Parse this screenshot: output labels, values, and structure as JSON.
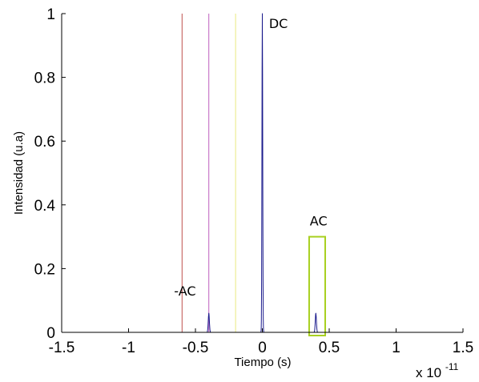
{
  "chart_data": {
    "type": "line",
    "title": "",
    "xlabel": "Tiempo (s)",
    "ylabel": "Intensidad (u.a)",
    "x_exponent_label": "x 10",
    "x_exponent_power": "-11",
    "xlim": [
      -1.5,
      1.5
    ],
    "ylim": [
      0,
      1
    ],
    "x_ticks": [
      -1.5,
      -1,
      -0.5,
      0,
      0.5,
      1,
      1.5
    ],
    "x_tick_labels": [
      "-1.5",
      "-1",
      "-0.5",
      "0",
      "0.5",
      "1",
      "1.5"
    ],
    "y_ticks": [
      0,
      0.2,
      0.4,
      0.6,
      0.8,
      1
    ],
    "y_tick_labels": [
      "0",
      "0.2",
      "0.4",
      "0.6",
      "0.8",
      "1"
    ],
    "grid": false,
    "series": [
      {
        "color": "#1a1a8c",
        "x_range": [
          -1.22,
          1.22
        ],
        "baseline": 0,
        "peaks": [
          {
            "center": -0.4,
            "height": 0.06,
            "width": 0.006
          },
          {
            "center": 0,
            "height": 1.0,
            "width": 0.004
          },
          {
            "center": 0.4,
            "height": 0.06,
            "width": 0.006
          }
        ]
      }
    ],
    "vertical_lines": [
      {
        "x": -0.6,
        "color": "#c0504d"
      },
      {
        "x": -0.4,
        "color": "#c060c0"
      },
      {
        "x": -0.2,
        "color": "#e8e880"
      }
    ],
    "highlight_box": {
      "x": [
        0.35,
        0.47
      ],
      "y": [
        -0.01,
        0.3
      ],
      "color": "#a8d020"
    },
    "annotations": [
      {
        "text": "DC",
        "x": 0.05,
        "y": 0.955
      },
      {
        "text": "-AC",
        "x": -0.66,
        "y": 0.115
      },
      {
        "text": "AC",
        "x": 0.355,
        "y": 0.335
      }
    ]
  }
}
